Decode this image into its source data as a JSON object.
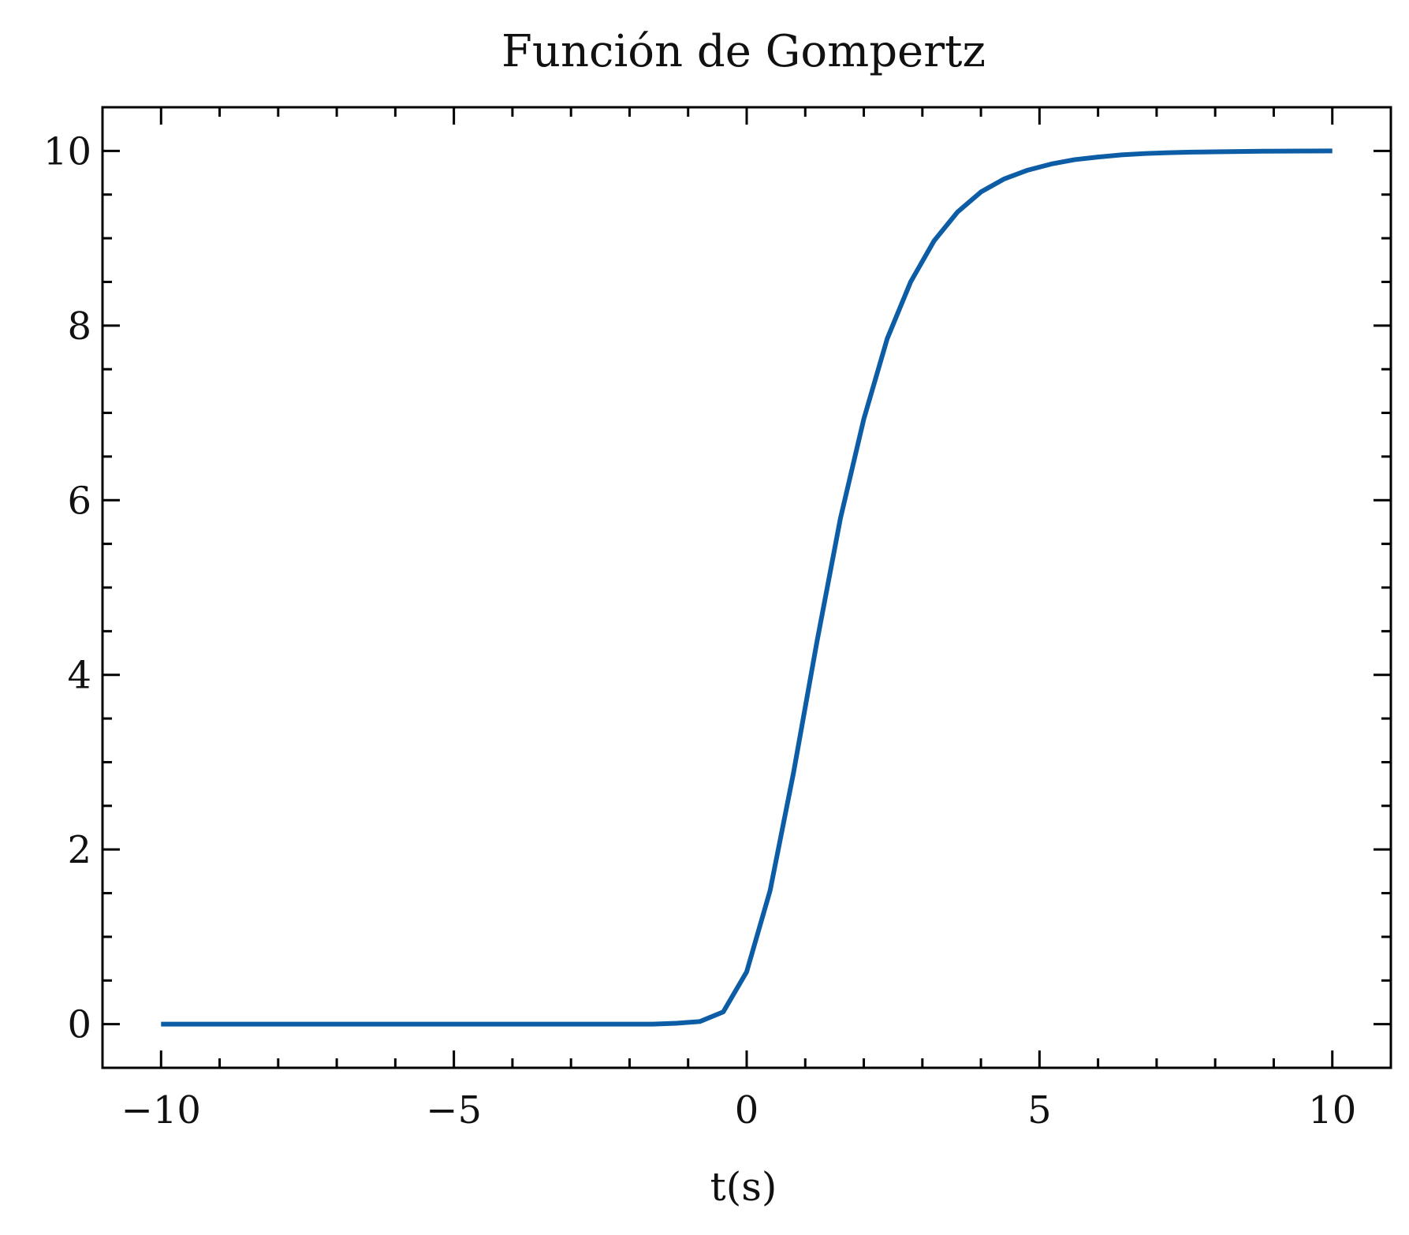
{
  "chart_data": {
    "type": "line",
    "title": "Función de Gompertz",
    "xlabel": "t(s)",
    "ylabel": "",
    "xlim": [
      -11,
      11
    ],
    "ylim": [
      -0.5,
      10.5
    ],
    "grid": false,
    "legend": "none",
    "x_ticks": [
      -10,
      -5,
      0,
      5,
      10
    ],
    "x_tick_labels": [
      "−10",
      "−5",
      "0",
      "5",
      "10"
    ],
    "x_minor_ticks": [
      -9,
      -8,
      -7,
      -6,
      -4,
      -3,
      -2,
      -1,
      1,
      2,
      3,
      4,
      6,
      7,
      8,
      9
    ],
    "y_ticks": [
      0,
      2,
      4,
      6,
      8,
      10
    ],
    "y_tick_labels": [
      "0",
      "2",
      "4",
      "6",
      "8",
      "10"
    ],
    "y_minor_ticks": [
      0.5,
      1,
      1.5,
      2.5,
      3,
      3.5,
      4.5,
      5,
      5.5,
      6.5,
      7,
      7.5,
      8.5,
      9,
      9.5
    ],
    "colors": {
      "series": "#0c5da5",
      "axes": "#000000",
      "text": "#111111"
    },
    "series": [
      {
        "color": "#0c5da5",
        "x": [
          -10,
          -9.6,
          -9.2,
          -8.8,
          -8.4,
          -8,
          -7.6,
          -7.2,
          -6.8,
          -6.4,
          -6,
          -5.6,
          -5.2,
          -4.8,
          -4.4,
          -4,
          -3.6,
          -3.2,
          -2.8,
          -2.4,
          -2,
          -1.6,
          -1.2,
          -0.8,
          -0.4,
          0,
          0.4,
          0.8,
          1.2,
          1.6,
          2,
          2.4,
          2.8,
          3.2,
          3.6,
          4,
          4.4,
          4.8,
          5.2,
          5.6,
          6,
          6.4,
          6.8,
          7.2,
          7.6,
          8,
          8.4,
          8.8,
          9.2,
          9.6,
          10
        ],
        "y": [
          0,
          0,
          0,
          0,
          0,
          0,
          0,
          0,
          0,
          0,
          0,
          0,
          0,
          0,
          0,
          0,
          0,
          0,
          0,
          0,
          0,
          0,
          0.01,
          0.03,
          0.14,
          0.6,
          1.53,
          2.88,
          4.38,
          5.79,
          6.93,
          7.85,
          8.5,
          8.97,
          9.3,
          9.53,
          9.68,
          9.78,
          9.85,
          9.9,
          9.93,
          9.955,
          9.97,
          9.98,
          9.986,
          9.99,
          9.993,
          9.996,
          9.998,
          9.999,
          10
        ]
      }
    ]
  }
}
